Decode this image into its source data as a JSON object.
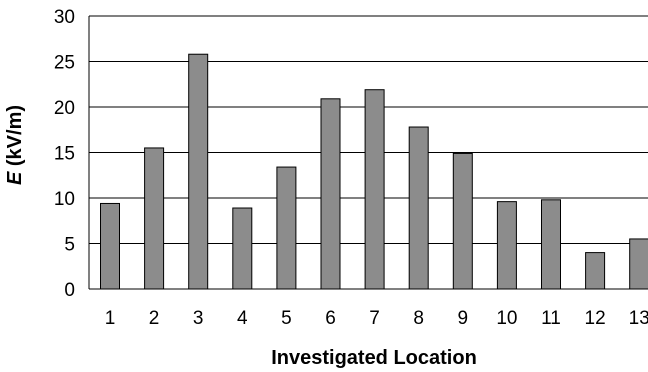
{
  "chart_data": {
    "type": "bar",
    "title": "",
    "xlabel": "Investigated Location",
    "ylabel_var": "E",
    "ylabel_unit": " (kV/m)",
    "categories": [
      "1",
      "2",
      "3",
      "4",
      "5",
      "6",
      "7",
      "8",
      "9",
      "10",
      "11",
      "12",
      "13"
    ],
    "values": [
      9.4,
      15.5,
      25.8,
      8.9,
      13.4,
      20.9,
      21.9,
      17.8,
      14.9,
      9.6,
      9.8,
      4.0,
      5.5
    ],
    "ylim": [
      0,
      30
    ],
    "yticks": [
      "0",
      "5",
      "10",
      "15",
      "20",
      "25",
      "30"
    ],
    "grid": true,
    "legend": "none",
    "bar_color": "#8c8c8c",
    "bar_edge_color": "#000000",
    "grid_color": "#000000"
  }
}
